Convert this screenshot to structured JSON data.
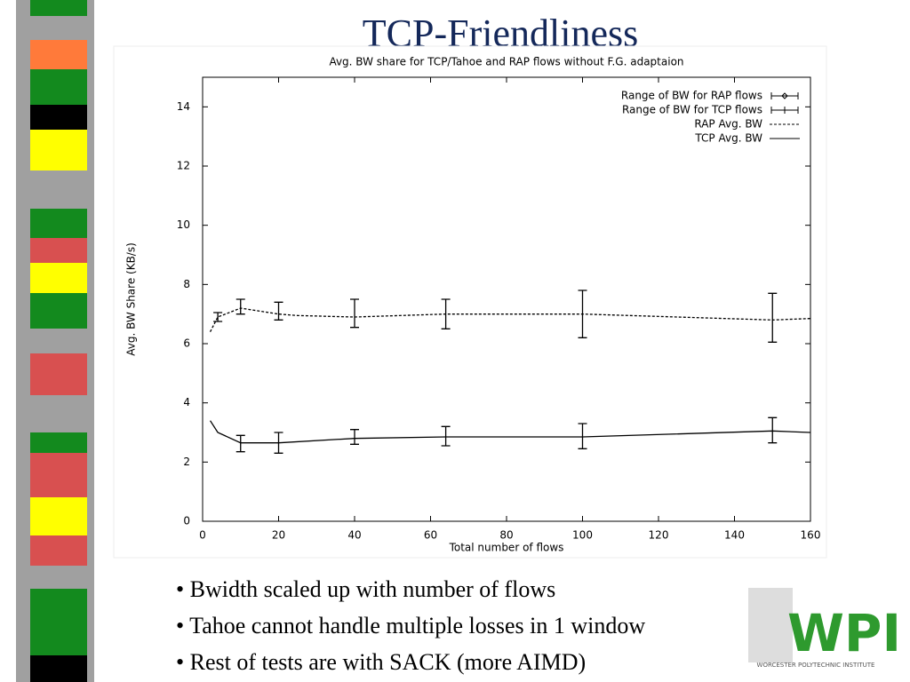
{
  "slide": {
    "title": "TCP-Friendliness",
    "bullets": [
      "• Bwidth scaled up with number of flows",
      "• Tahoe cannot handle multiple losses in 1 window",
      "• Rest of tests are with SACK (more AIMD)"
    ],
    "logo": {
      "mark": "WPI",
      "name": "WORCESTER POLYTECHNIC INSTITUTE"
    }
  },
  "chart_data": {
    "type": "line",
    "title": "Avg. BW share for TCP/Tahoe and RAP flows without F.G. adaptaion",
    "x_label": "Total number of flows",
    "y_label": "Avg. BW Share (KB/s)",
    "xlim": [
      0,
      160
    ],
    "xticks": [
      0,
      20,
      40,
      60,
      80,
      100,
      120,
      140,
      160
    ],
    "ylim": [
      0,
      15
    ],
    "yticks": [
      0,
      2,
      4,
      6,
      8,
      10,
      12,
      14
    ],
    "legend": "top-right",
    "series": [
      {
        "name": "Range of BW for RAP flows",
        "kind": "range",
        "marker": "diamond",
        "color": "#000000",
        "x": [
          4,
          10,
          20,
          40,
          64,
          100,
          150
        ],
        "low": [
          6.75,
          7.0,
          6.8,
          6.55,
          6.5,
          6.2,
          6.05
        ],
        "high": [
          7.05,
          7.5,
          7.4,
          7.5,
          7.5,
          7.8,
          7.7
        ]
      },
      {
        "name": "Range of BW for TCP flows",
        "kind": "range",
        "marker": "plus",
        "color": "#000000",
        "x": [
          10,
          20,
          40,
          64,
          100,
          150
        ],
        "low": [
          2.35,
          2.3,
          2.6,
          2.55,
          2.45,
          2.65
        ],
        "high": [
          2.9,
          3.0,
          3.1,
          3.2,
          3.3,
          3.5
        ]
      },
      {
        "name": "RAP Avg. BW",
        "kind": "line",
        "style": "dashed",
        "color": "#000000",
        "x": [
          2,
          4,
          10,
          20,
          25,
          40,
          64,
          100,
          150,
          160
        ],
        "values": [
          6.4,
          6.9,
          7.2,
          7.0,
          6.95,
          6.9,
          7.0,
          7.0,
          6.8,
          6.85
        ]
      },
      {
        "name": "TCP Avg. BW",
        "kind": "line",
        "style": "solid",
        "color": "#000000",
        "x": [
          2,
          4,
          10,
          20,
          40,
          64,
          100,
          150,
          160
        ],
        "values": [
          3.4,
          3.0,
          2.65,
          2.65,
          2.8,
          2.85,
          2.85,
          3.05,
          3.0
        ]
      }
    ]
  }
}
